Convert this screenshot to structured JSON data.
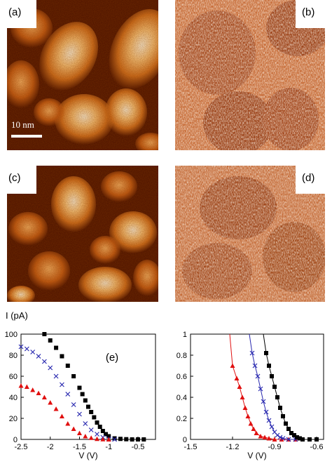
{
  "panels": {
    "a": {
      "label": "(a)"
    },
    "b": {
      "label": "(b)"
    },
    "c": {
      "label": "(c)"
    },
    "d": {
      "label": "(d)"
    }
  },
  "scalebar": {
    "label": "10 nm"
  },
  "colors": {
    "topo_dark": "#3a0a00",
    "topo_mid": "#c0581a",
    "topo_light": "#fff3d8",
    "red": "#e01010",
    "blue": "#2a2ab0",
    "black": "#000000"
  },
  "chart_data": [
    {
      "type": "scatter",
      "panel_label": "(e)",
      "ylabel": "I (pA)",
      "xlabel": "V (V)",
      "xlim": [
        -2.5,
        -0.2
      ],
      "ylim": [
        0,
        100
      ],
      "xticks": [
        "-2.5",
        "-2",
        "-1.5",
        "-1",
        "-0.5"
      ],
      "yticks": [
        "0",
        "20",
        "40",
        "60",
        "80",
        "100"
      ],
      "series": [
        {
          "marker": "square",
          "color": "#000000",
          "x": [
            -2.1,
            -2.0,
            -1.9,
            -1.8,
            -1.7,
            -1.6,
            -1.5,
            -1.45,
            -1.4,
            -1.35,
            -1.3,
            -1.25,
            -1.2,
            -1.15,
            -1.1,
            -1.05,
            -1.0,
            -0.9,
            -0.8,
            -0.7,
            -0.6,
            -0.5,
            -0.4
          ],
          "y": [
            100,
            94,
            87,
            79,
            70,
            60,
            49,
            43,
            37,
            31,
            26,
            21,
            16,
            12,
            8,
            5,
            3,
            1,
            0.5,
            0.2,
            0,
            0,
            0
          ]
        },
        {
          "marker": "cross",
          "color": "#2a2ab0",
          "x": [
            -2.5,
            -2.4,
            -2.3,
            -2.2,
            -2.1,
            -2.0,
            -1.9,
            -1.8,
            -1.7,
            -1.6,
            -1.5,
            -1.4,
            -1.3,
            -1.2,
            -1.1,
            -1.0,
            -0.9
          ],
          "y": [
            88,
            86,
            83,
            79,
            74,
            68,
            60,
            52,
            43,
            33,
            24,
            15,
            9,
            5,
            2,
            0.5,
            0
          ]
        },
        {
          "marker": "triangle",
          "color": "#e01010",
          "x": [
            -2.5,
            -2.4,
            -2.3,
            -2.2,
            -2.1,
            -2.0,
            -1.9,
            -1.8,
            -1.7,
            -1.6,
            -1.5,
            -1.4,
            -1.3,
            -1.2,
            -1.1,
            -1.0
          ],
          "y": [
            51,
            50,
            47,
            44,
            40,
            35,
            29,
            22,
            15,
            10,
            6,
            3,
            1.5,
            0.5,
            0.2,
            0
          ]
        }
      ]
    },
    {
      "type": "scatter",
      "xlabel": "V (V)",
      "xlim": [
        -1.5,
        -0.55
      ],
      "ylim": [
        0,
        1
      ],
      "xticks": [
        "-1.5",
        "-1.2",
        "-0.9",
        "-0.6"
      ],
      "yticks": [
        "0",
        "0.2",
        "0.4",
        "0.6",
        "0.8",
        "1"
      ],
      "series": [
        {
          "marker": "triangle",
          "color": "#e01010",
          "x": [
            -1.2,
            -1.17,
            -1.15,
            -1.13,
            -1.11,
            -1.09,
            -1.07,
            -1.05,
            -1.03,
            -1.0,
            -0.97,
            -0.94,
            -0.9,
            -0.85,
            -0.8,
            -0.75
          ],
          "y": [
            0.7,
            0.58,
            0.5,
            0.4,
            0.3,
            0.22,
            0.15,
            0.1,
            0.06,
            0.03,
            0.02,
            0.01,
            0.0,
            0.0,
            0.0,
            0.0
          ]
        },
        {
          "marker": "cross",
          "color": "#2a2ab0",
          "x": [
            -1.06,
            -1.04,
            -1.02,
            -1.0,
            -0.98,
            -0.96,
            -0.94,
            -0.92,
            -0.9,
            -0.88,
            -0.86,
            -0.84,
            -0.8,
            -0.75
          ],
          "y": [
            0.82,
            0.7,
            0.6,
            0.48,
            0.36,
            0.26,
            0.18,
            0.12,
            0.07,
            0.04,
            0.02,
            0.01,
            0.0,
            0.0
          ]
        },
        {
          "marker": "square",
          "color": "#000000",
          "x": [
            -0.96,
            -0.94,
            -0.92,
            -0.9,
            -0.88,
            -0.86,
            -0.84,
            -0.82,
            -0.8,
            -0.78,
            -0.76,
            -0.74,
            -0.72,
            -0.7,
            -0.65,
            -0.6
          ],
          "y": [
            0.82,
            0.7,
            0.6,
            0.5,
            0.4,
            0.3,
            0.22,
            0.15,
            0.1,
            0.06,
            0.04,
            0.02,
            0.01,
            0.0,
            0.0,
            0.0
          ]
        }
      ]
    }
  ]
}
